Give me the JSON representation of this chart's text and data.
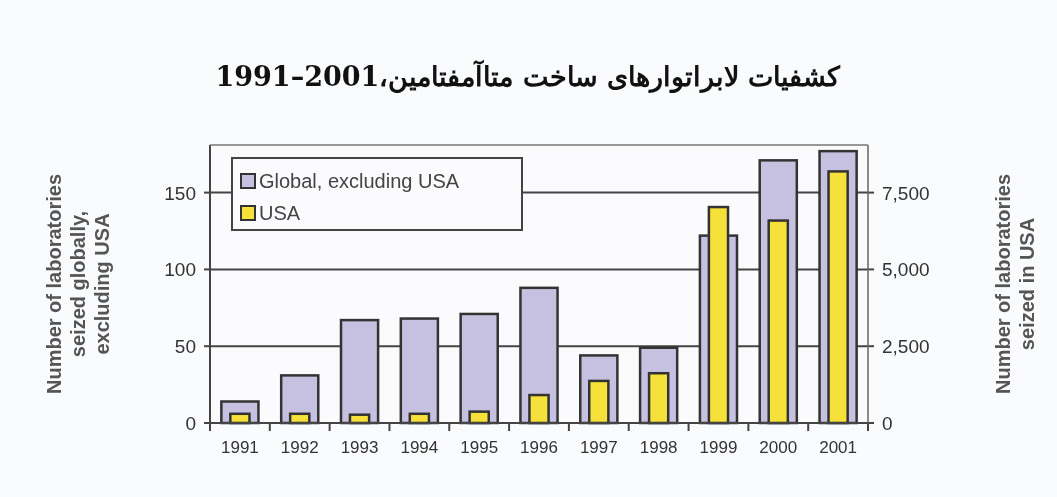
{
  "chart_data": {
    "type": "bar",
    "title": "کشفیات لابراتوارهای ساخت متاآمفتامین،2001–1991",
    "ylabel": "Number of laboratories seized globally, excluding USA",
    "y2label": "Number of laboratories seized in USA",
    "categories": [
      "1991",
      "1992",
      "1993",
      "1994",
      "1995",
      "1996",
      "1997",
      "1998",
      "1999",
      "2000",
      "2001"
    ],
    "series": [
      {
        "name": "Global, excluding USA",
        "color": "#c6c1e0",
        "values": [
          14,
          31,
          67,
          68,
          71,
          88,
          44,
          49,
          122,
          171,
          177
        ]
      },
      {
        "name": "USA",
        "color": "#f6e03a",
        "axis": "y2",
        "values": [
          300,
          300,
          270,
          300,
          370,
          910,
          1370,
          1620,
          7030,
          6590,
          8190
        ]
      }
    ],
    "ylim": [
      0,
      181
    ],
    "yticks": [
      0,
      50,
      100,
      150
    ],
    "y2lim": [
      0,
      9050
    ],
    "y2ticks": [
      0,
      {
        "value": 2500,
        "label": "2,500"
      },
      {
        "value": 5000,
        "label": "5,000"
      },
      {
        "value": 7500,
        "label": "7,500"
      }
    ],
    "grid": "y",
    "legend": "top left"
  }
}
